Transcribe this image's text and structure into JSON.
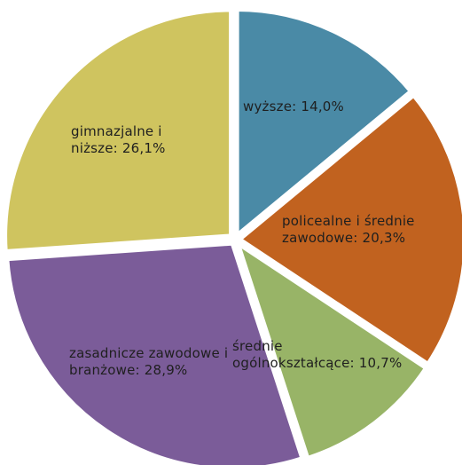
{
  "chart_data": {
    "type": "pie",
    "categories": [
      "wyższe",
      "policealne i średnie zawodowe",
      "średnie ogólnokształcące",
      "zasadnicze zawodowe i branżowe",
      "gimnazjalne i niższe"
    ],
    "values": [
      14.0,
      20.3,
      10.7,
      28.9,
      26.1
    ],
    "unit": "%",
    "labels": [
      "wyższe: 14,0%",
      "policealne i średnie\nzawodowe: 20,3%",
      "średnie\nogólnokształcące: 10,7%",
      "zasadnicze zawodowe i\nbranżowe: 28,9%",
      "gimnazjalne i\nniższe: 26,1%"
    ],
    "colors": [
      "#4a8aa6",
      "#c1621f",
      "#98b467",
      "#7b5c99",
      "#cfc45f"
    ],
    "start_angle_deg": 0,
    "direction": "clockwise",
    "exploded": true,
    "legend": "none",
    "title": ""
  }
}
